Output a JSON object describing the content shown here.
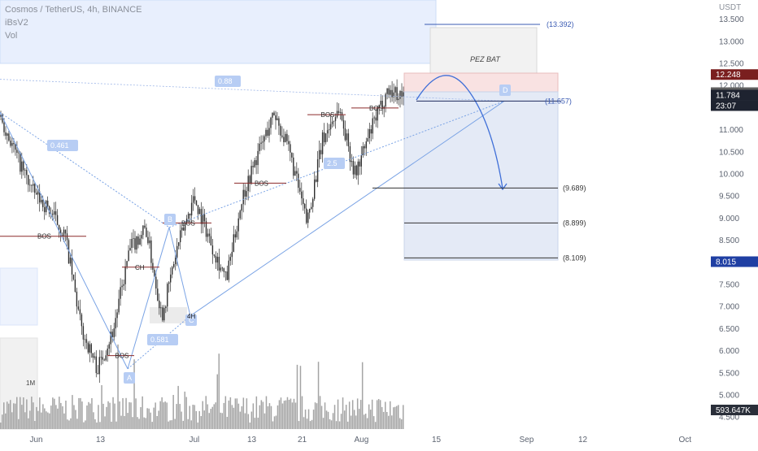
{
  "legend": {
    "symbol_line": "Cosmos / TetherUS, 4h, BINANCE",
    "indicator_1": "iBsV2",
    "indicator_2": "Vol"
  },
  "price_axis": {
    "currency": "USDT",
    "ticks": [
      "13.500",
      "13.000",
      "12.500",
      "12.000",
      "11.500",
      "11.000",
      "10.500",
      "10.000",
      "9.500",
      "9.000",
      "8.500",
      "8.000",
      "7.500",
      "7.000",
      "6.500",
      "6.000",
      "5.500",
      "5.000",
      "4.500"
    ],
    "badges": {
      "pattern_top": "12.248",
      "pattern_d": "11.839",
      "last_price": "11.784",
      "countdown": "23:07",
      "bottom_level": "8.015",
      "volume": "593.647K"
    }
  },
  "time_axis": {
    "ticks": [
      "Jun",
      "13",
      "Jul",
      "13",
      "21",
      "Aug",
      "15",
      "Sep",
      "12",
      "Oct"
    ]
  },
  "annotations": {
    "pattern_name": "PEZ BAT",
    "point_a": "A",
    "point_b": "B",
    "point_c": "C",
    "point_d": "D",
    "ratio_xb": "0.461",
    "ratio_bc": "0.581",
    "ratio_bd": "0.88",
    "ratio_cd": "2.5",
    "target_top": "(13.392)",
    "target_d": "(11.657)",
    "target_1": "(9.689)",
    "target_2": "(8.899)",
    "target_3": "(8.109)",
    "bos_label": "BOS",
    "ch_label": "CH",
    "timeframe_label": "4H",
    "volume_label": "1M"
  },
  "chart_data": {
    "type": "candlestick",
    "symbol": "Cosmos / TetherUS, 4h, BINANCE",
    "y_axis": {
      "label": "USDT",
      "range": [
        4.3,
        13.9
      ]
    },
    "price_path": [
      {
        "date": "May 25",
        "price": 11.3
      },
      {
        "date": "May 28",
        "price": 10.4
      },
      {
        "date": "Jun 1",
        "price": 9.6
      },
      {
        "date": "Jun 4",
        "price": 9.2
      },
      {
        "date": "Jun 8",
        "price": 8.6
      },
      {
        "date": "Jun 12",
        "price": 6.5
      },
      {
        "date": "Jun 15",
        "price": 5.6
      },
      {
        "date": "Jun 18",
        "price": 6.5
      },
      {
        "date": "Jun 21",
        "price": 8.3
      },
      {
        "date": "Jun 24",
        "price": 8.8
      },
      {
        "date": "Jun 28",
        "price": 6.8
      },
      {
        "date": "Jul 2",
        "price": 8.4
      },
      {
        "date": "Jul 6",
        "price": 9.5
      },
      {
        "date": "Jul 10",
        "price": 8.5
      },
      {
        "date": "Jul 13",
        "price": 7.6
      },
      {
        "date": "Jul 16",
        "price": 9.5
      },
      {
        "date": "Jul 20",
        "price": 10.5
      },
      {
        "date": "Jul 23",
        "price": 11.4
      },
      {
        "date": "Jul 26",
        "price": 10.4
      },
      {
        "date": "Jul 28",
        "price": 8.9
      },
      {
        "date": "Jul 31",
        "price": 10.8
      },
      {
        "date": "Aug 3",
        "price": 11.5
      },
      {
        "date": "Aug 5",
        "price": 10.0
      },
      {
        "date": "Aug 7",
        "price": 11.0
      },
      {
        "date": "Aug 9",
        "price": 11.9
      },
      {
        "date": "Aug 10",
        "price": 11.784
      }
    ],
    "levels": [
      13.392,
      11.657,
      9.689,
      8.899,
      8.109,
      8.015,
      12.248,
      11.839,
      11.784
    ],
    "harmonic_pattern": {
      "name": "PEZ BAT",
      "points": {
        "A": 5.6,
        "B": 8.8,
        "C": 6.8,
        "D": 11.657
      },
      "ratios": [
        0.461,
        0.581,
        0.88
      ]
    },
    "volume": {
      "last": "593.647K",
      "scale_label": "1M"
    },
    "grid": false,
    "legend": "top-left"
  }
}
